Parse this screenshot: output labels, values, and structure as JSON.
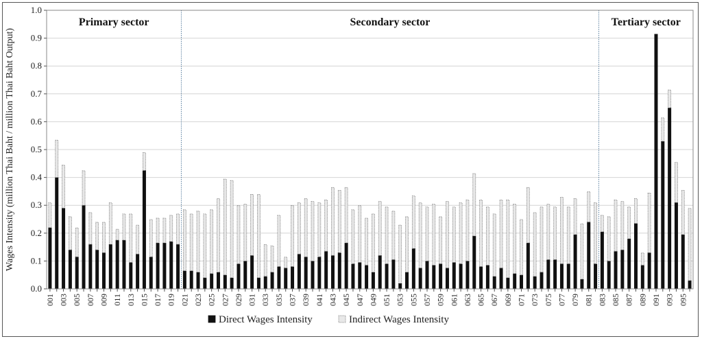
{
  "chart_data": {
    "type": "bar",
    "stacked": true,
    "ylabel": "Wages Intensity (million Thai Baht / million Thai Baht Output)",
    "xlabel": "",
    "ylim": [
      0,
      1.0
    ],
    "yticks": [
      "0.0",
      "0.1",
      "0.2",
      "0.3",
      "0.4",
      "0.5",
      "0.6",
      "0.7",
      "0.8",
      "0.9",
      "1.0"
    ],
    "grid": true,
    "legend_position": "bottom",
    "sectors": [
      {
        "label": "Primary sector",
        "from": "001",
        "to": "020"
      },
      {
        "label": "Secondary sector",
        "from": "021",
        "to": "082"
      },
      {
        "label": "Tertiary sector",
        "from": "083",
        "to": "096"
      }
    ],
    "categories": [
      "001",
      "002",
      "003",
      "004",
      "005",
      "006",
      "007",
      "008",
      "009",
      "010",
      "011",
      "012",
      "013",
      "014",
      "015",
      "016",
      "017",
      "018",
      "019",
      "020",
      "021",
      "022",
      "023",
      "024",
      "025",
      "026",
      "027",
      "028",
      "029",
      "030",
      "031",
      "032",
      "033",
      "034",
      "035",
      "036",
      "037",
      "038",
      "039",
      "040",
      "041",
      "042",
      "043",
      "044",
      "045",
      "046",
      "047",
      "048",
      "049",
      "050",
      "051",
      "052",
      "053",
      "054",
      "055",
      "056",
      "057",
      "058",
      "059",
      "060",
      "061",
      "062",
      "063",
      "064",
      "065",
      "066",
      "067",
      "068",
      "069",
      "070",
      "071",
      "072",
      "073",
      "074",
      "075",
      "076",
      "077",
      "078",
      "079",
      "080",
      "081",
      "082",
      "083",
      "084",
      "085",
      "086",
      "087",
      "088",
      "089",
      "090",
      "091",
      "092",
      "093",
      "094",
      "095",
      "096"
    ],
    "xtick_labels": [
      "001",
      "003",
      "005",
      "007",
      "009",
      "011",
      "013",
      "015",
      "017",
      "019",
      "021",
      "023",
      "025",
      "027",
      "029",
      "031",
      "033",
      "035",
      "037",
      "039",
      "041",
      "043",
      "045",
      "047",
      "049",
      "051",
      "053",
      "055",
      "057",
      "059",
      "061",
      "063",
      "065",
      "067",
      "069",
      "071",
      "073",
      "075",
      "077",
      "079",
      "081",
      "083",
      "085",
      "087",
      "089",
      "091",
      "093",
      "095"
    ],
    "series": [
      {
        "name": "Direct Wages Intensity",
        "color": "#111111",
        "values": [
          0.22,
          0.4,
          0.29,
          0.14,
          0.115,
          0.3,
          0.16,
          0.14,
          0.13,
          0.16,
          0.175,
          0.175,
          0.095,
          0.125,
          0.425,
          0.115,
          0.165,
          0.165,
          0.17,
          0.16,
          0.065,
          0.065,
          0.06,
          0.04,
          0.055,
          0.06,
          0.05,
          0.04,
          0.09,
          0.1,
          0.12,
          0.04,
          0.045,
          0.06,
          0.08,
          0.075,
          0.08,
          0.125,
          0.115,
          0.1,
          0.115,
          0.135,
          0.12,
          0.13,
          0.165,
          0.09,
          0.095,
          0.085,
          0.06,
          0.12,
          0.09,
          0.105,
          0.02,
          0.06,
          0.145,
          0.075,
          0.1,
          0.085,
          0.09,
          0.075,
          0.095,
          0.09,
          0.1,
          0.19,
          0.08,
          0.085,
          0.045,
          0.075,
          0.04,
          0.055,
          0.05,
          0.165,
          0.045,
          0.06,
          0.105,
          0.105,
          0.09,
          0.09,
          0.195,
          0.035,
          0.24,
          0.09,
          0.205,
          0.1,
          0.135,
          0.14,
          0.18,
          0.235,
          0.085,
          0.13,
          0.915,
          0.53,
          0.65,
          0.31,
          0.195,
          0.03
        ]
      },
      {
        "name": "Indirect Wages Intensity",
        "color": "#e8e8e8",
        "values": [
          0.09,
          0.135,
          0.155,
          0.12,
          0.105,
          0.125,
          0.115,
          0.1,
          0.11,
          0.15,
          0.04,
          0.095,
          0.175,
          0.105,
          0.065,
          0.135,
          0.09,
          0.09,
          0.095,
          0.11,
          0.22,
          0.205,
          0.22,
          0.23,
          0.23,
          0.265,
          0.345,
          0.35,
          0.21,
          0.205,
          0.22,
          0.3,
          0.115,
          0.095,
          0.185,
          0.04,
          0.22,
          0.185,
          0.21,
          0.215,
          0.195,
          0.185,
          0.245,
          0.225,
          0.2,
          0.195,
          0.205,
          0.17,
          0.21,
          0.195,
          0.205,
          0.175,
          0.21,
          0.2,
          0.19,
          0.235,
          0.195,
          0.22,
          0.17,
          0.24,
          0.2,
          0.22,
          0.22,
          0.225,
          0.24,
          0.21,
          0.225,
          0.245,
          0.28,
          0.25,
          0.2,
          0.2,
          0.23,
          0.235,
          0.2,
          0.19,
          0.24,
          0.205,
          0.13,
          0.2,
          0.11,
          0.22,
          0.06,
          0.16,
          0.185,
          0.175,
          0.115,
          0.09,
          0.045,
          0.215,
          0.0,
          0.085,
          0.065,
          0.145,
          0.16,
          0.26
        ]
      }
    ]
  }
}
